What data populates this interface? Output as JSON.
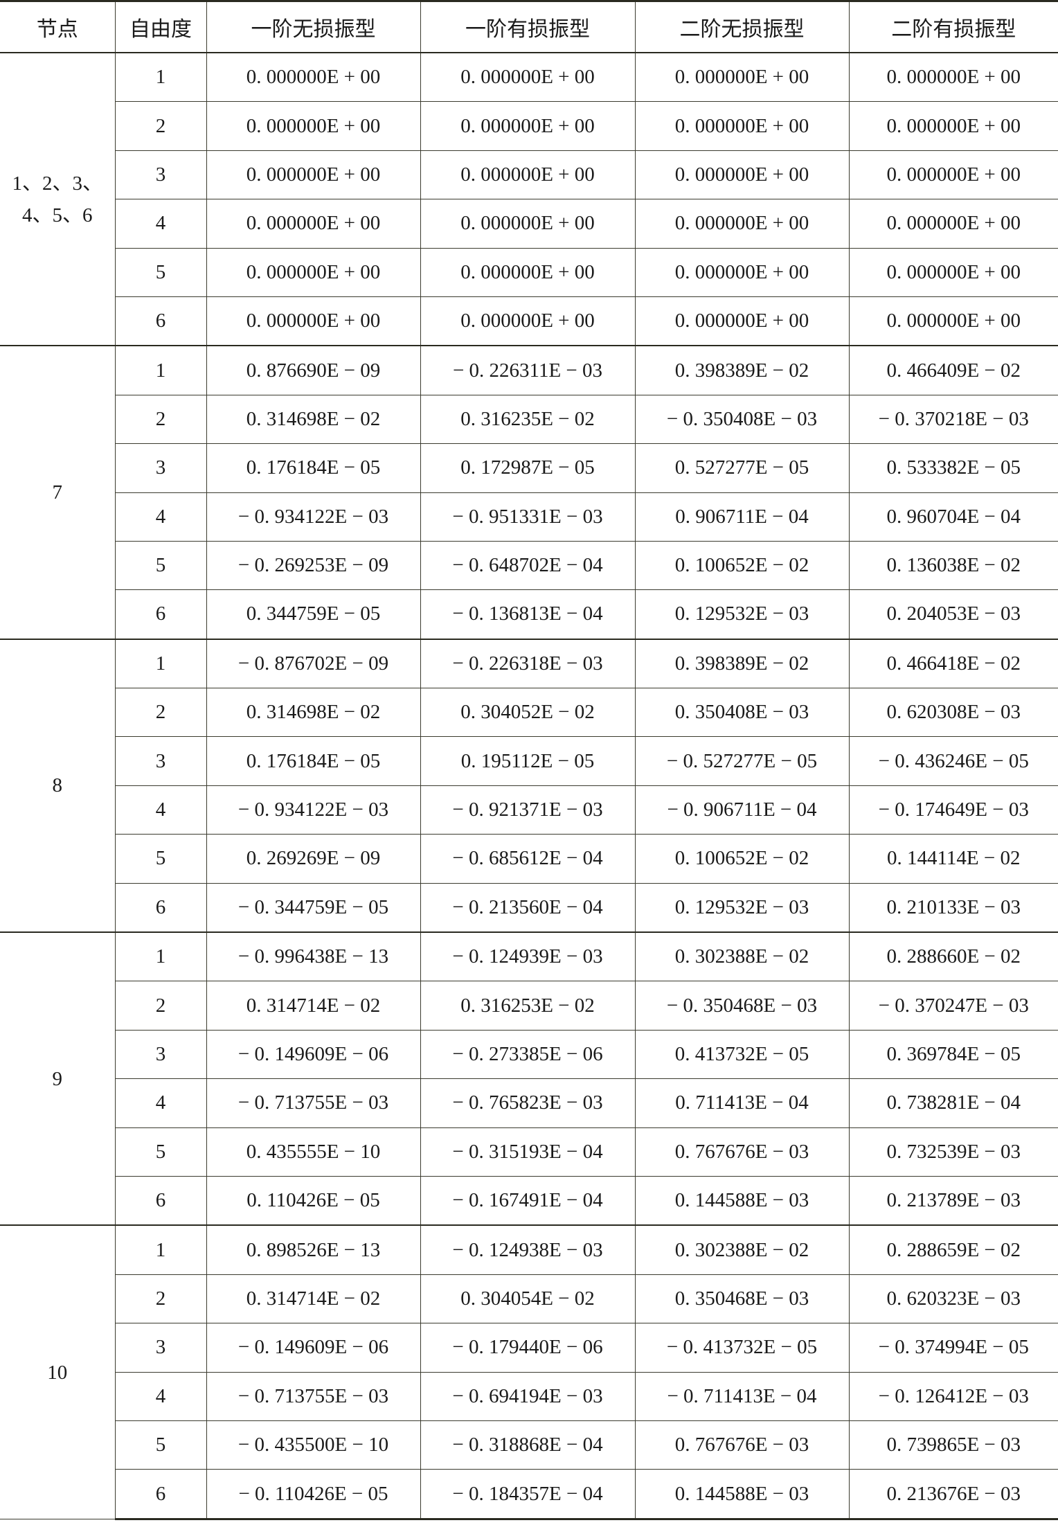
{
  "headers": [
    "节点",
    "自由度",
    "一阶无损振型",
    "一阶有损振型",
    "二阶无损振型",
    "二阶有损振型"
  ],
  "groups": [
    {
      "node": "1、2、3、4、5、6",
      "rows": [
        [
          "1",
          "0. 000000E + 00",
          "0. 000000E + 00",
          "0. 000000E + 00",
          "0. 000000E + 00"
        ],
        [
          "2",
          "0. 000000E + 00",
          "0. 000000E + 00",
          "0. 000000E + 00",
          "0. 000000E + 00"
        ],
        [
          "3",
          "0. 000000E + 00",
          "0. 000000E + 00",
          "0. 000000E + 00",
          "0. 000000E + 00"
        ],
        [
          "4",
          "0. 000000E + 00",
          "0. 000000E + 00",
          "0. 000000E + 00",
          "0. 000000E + 00"
        ],
        [
          "5",
          "0. 000000E + 00",
          "0. 000000E + 00",
          "0. 000000E + 00",
          "0. 000000E + 00"
        ],
        [
          "6",
          "0. 000000E + 00",
          "0. 000000E + 00",
          "0. 000000E + 00",
          "0. 000000E + 00"
        ]
      ]
    },
    {
      "node": "7",
      "rows": [
        [
          "1",
          "0. 876690E − 09",
          "− 0. 226311E − 03",
          "0. 398389E − 02",
          "0. 466409E − 02"
        ],
        [
          "2",
          "0. 314698E − 02",
          "0. 316235E − 02",
          "− 0. 350408E − 03",
          "− 0. 370218E − 03"
        ],
        [
          "3",
          "0. 176184E − 05",
          "0. 172987E − 05",
          "0. 527277E − 05",
          "0. 533382E − 05"
        ],
        [
          "4",
          "− 0. 934122E − 03",
          "− 0. 951331E − 03",
          "0. 906711E − 04",
          "0. 960704E − 04"
        ],
        [
          "5",
          "− 0. 269253E − 09",
          "− 0. 648702E − 04",
          "0. 100652E − 02",
          "0. 136038E − 02"
        ],
        [
          "6",
          "0. 344759E − 05",
          "− 0. 136813E − 04",
          "0. 129532E − 03",
          "0. 204053E − 03"
        ]
      ]
    },
    {
      "node": "8",
      "rows": [
        [
          "1",
          "− 0. 876702E − 09",
          "− 0. 226318E − 03",
          "0. 398389E − 02",
          "0. 466418E − 02"
        ],
        [
          "2",
          "0. 314698E − 02",
          "0. 304052E − 02",
          "0. 350408E − 03",
          "0. 620308E − 03"
        ],
        [
          "3",
          "0. 176184E − 05",
          "0. 195112E − 05",
          "− 0. 527277E − 05",
          "− 0. 436246E − 05"
        ],
        [
          "4",
          "− 0. 934122E − 03",
          "− 0. 921371E − 03",
          "− 0. 906711E − 04",
          "− 0. 174649E − 03"
        ],
        [
          "5",
          "0. 269269E − 09",
          "− 0. 685612E − 04",
          "0. 100652E − 02",
          "0. 144114E − 02"
        ],
        [
          "6",
          "− 0. 344759E − 05",
          "− 0. 213560E − 04",
          "0. 129532E − 03",
          "0. 210133E − 03"
        ]
      ]
    },
    {
      "node": "9",
      "rows": [
        [
          "1",
          "− 0. 996438E − 13",
          "− 0. 124939E − 03",
          "0. 302388E − 02",
          "0. 288660E − 02"
        ],
        [
          "2",
          "0. 314714E − 02",
          "0. 316253E − 02",
          "− 0. 350468E − 03",
          "− 0. 370247E − 03"
        ],
        [
          "3",
          "− 0. 149609E − 06",
          "− 0. 273385E − 06",
          "0. 413732E − 05",
          "0. 369784E − 05"
        ],
        [
          "4",
          "− 0. 713755E − 03",
          "− 0. 765823E − 03",
          "0. 711413E − 04",
          "0. 738281E − 04"
        ],
        [
          "5",
          "0. 435555E − 10",
          "− 0. 315193E − 04",
          "0. 767676E − 03",
          "0. 732539E − 03"
        ],
        [
          "6",
          "0. 110426E − 05",
          "− 0. 167491E − 04",
          "0. 144588E − 03",
          "0. 213789E − 03"
        ]
      ]
    },
    {
      "node": "10",
      "rows": [
        [
          "1",
          "0. 898526E − 13",
          "− 0. 124938E − 03",
          "0. 302388E − 02",
          "0. 288659E − 02"
        ],
        [
          "2",
          "0. 314714E − 02",
          "0. 304054E − 02",
          "0. 350468E − 03",
          "0. 620323E − 03"
        ],
        [
          "3",
          "− 0. 149609E − 06",
          "− 0. 179440E − 06",
          "− 0. 413732E − 05",
          "− 0. 374994E − 05"
        ],
        [
          "4",
          "− 0. 713755E − 03",
          "− 0. 694194E − 03",
          "− 0. 711413E − 04",
          "− 0. 126412E − 03"
        ],
        [
          "5",
          "− 0. 435500E − 10",
          "− 0. 318868E − 04",
          "0. 767676E − 03",
          "0. 739865E − 03"
        ],
        [
          "6",
          "− 0. 110426E − 05",
          "− 0. 184357E − 04",
          "0. 144588E − 03",
          "0. 213676E − 03"
        ]
      ]
    }
  ]
}
